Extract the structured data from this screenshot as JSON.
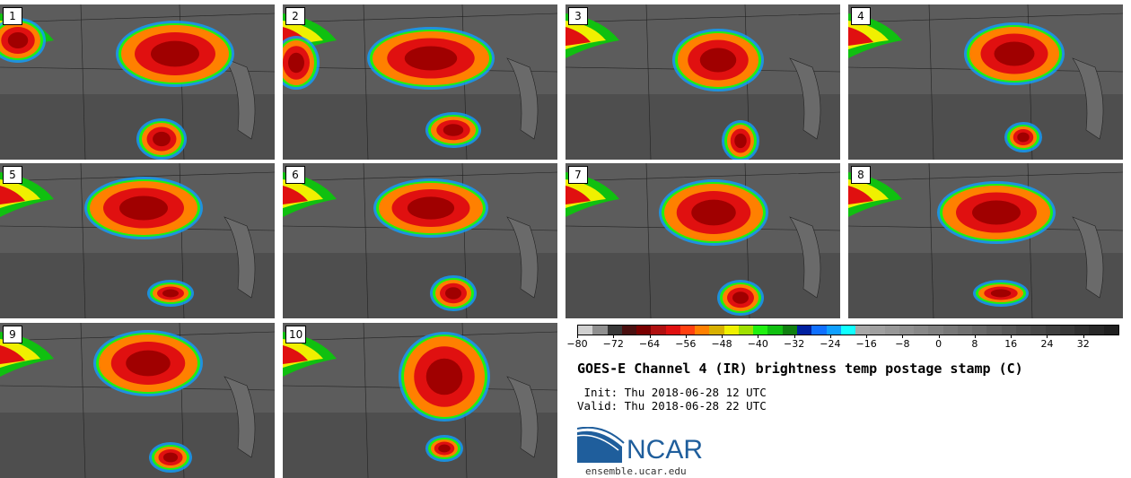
{
  "panels": [
    {
      "label": "1"
    },
    {
      "label": "2"
    },
    {
      "label": "3"
    },
    {
      "label": "4"
    },
    {
      "label": "5"
    },
    {
      "label": "6"
    },
    {
      "label": "7"
    },
    {
      "label": "8"
    },
    {
      "label": "9"
    },
    {
      "label": "10"
    }
  ],
  "colorbar": {
    "colors": [
      "#d0d0d0",
      "#909090",
      "#383838",
      "#4a1010",
      "#7a0000",
      "#b01010",
      "#e01010",
      "#ff4010",
      "#ff8000",
      "#d8b000",
      "#f0f000",
      "#a0e000",
      "#20f010",
      "#10c010",
      "#108010",
      "#0020a0",
      "#1070ff",
      "#10a0ff",
      "#10ffff",
      "#a8a8a8",
      "#a0a0a0",
      "#989898",
      "#909090",
      "#888888",
      "#808080",
      "#787878",
      "#707070",
      "#686868",
      "#606060",
      "#585858",
      "#505050",
      "#484848",
      "#404040",
      "#383838",
      "#303030",
      "#282828",
      "#202020"
    ],
    "ticks": [
      "−80",
      "−72",
      "−64",
      "−56",
      "−48",
      "−40",
      "−32",
      "−24",
      "−16",
      "−8",
      "0",
      "8",
      "16",
      "24",
      "32"
    ],
    "tick_values": [
      -80,
      -72,
      -64,
      -56,
      -48,
      -40,
      -32,
      -24,
      -16,
      -8,
      0,
      8,
      16,
      24,
      32
    ],
    "range": [
      -80,
      40
    ]
  },
  "title": "GOES-E Channel 4 (IR) brightness temp postage stamp (C)",
  "init": " Init: Thu 2018-06-28 12 UTC",
  "valid": "Valid: Thu 2018-06-28 22 UTC",
  "logo": {
    "text": "NCAR",
    "color": "#1f5e9c"
  },
  "url": "ensemble.ucar.edu"
}
